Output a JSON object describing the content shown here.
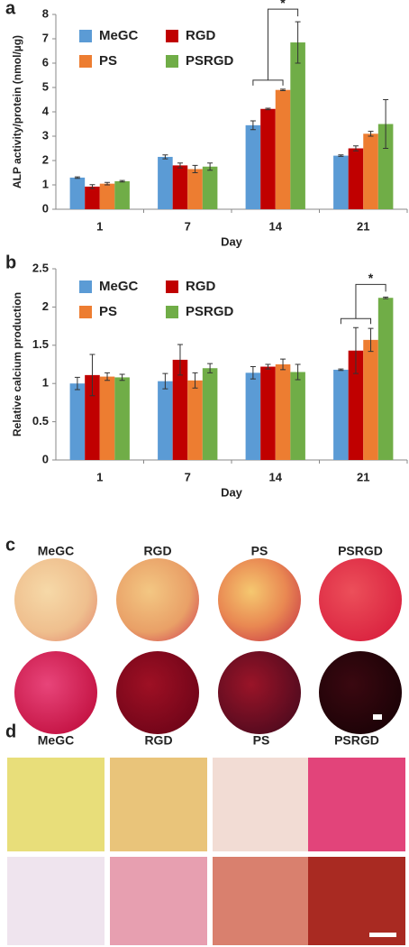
{
  "chart_data": [
    {
      "type": "bar",
      "panel": "a",
      "y_label": "ALP activity/protein (nmol/µg)",
      "x_label": "Day",
      "categories": [
        "1",
        "7",
        "14",
        "21"
      ],
      "series": [
        {
          "name": "MeGC",
          "color": "#5b9bd5",
          "values": [
            1.3,
            2.15,
            3.45,
            2.2
          ],
          "errors": [
            0.03,
            0.08,
            0.18,
            0.03
          ]
        },
        {
          "name": "RGD",
          "color": "#c00000",
          "values": [
            0.93,
            1.8,
            4.12,
            2.5
          ],
          "errors": [
            0.08,
            0.1,
            0.03,
            0.1
          ]
        },
        {
          "name": "PS",
          "color": "#ed7d31",
          "values": [
            1.05,
            1.65,
            4.9,
            3.1
          ],
          "errors": [
            0.05,
            0.15,
            0.03,
            0.1
          ]
        },
        {
          "name": "PSRGD",
          "color": "#70ad47",
          "values": [
            1.15,
            1.75,
            6.85,
            3.5
          ],
          "errors": [
            0.03,
            0.15,
            0.85,
            1.0
          ]
        }
      ],
      "ylim": [
        0,
        8
      ],
      "yticks": [
        0,
        1,
        2,
        3,
        4,
        5,
        6,
        7,
        8
      ],
      "annotation": "*"
    },
    {
      "type": "bar",
      "panel": "b",
      "y_label": "Relative calcium production",
      "x_label": "Day",
      "categories": [
        "1",
        "7",
        "14",
        "21"
      ],
      "series": [
        {
          "name": "MeGC",
          "color": "#5b9bd5",
          "values": [
            1.0,
            1.03,
            1.14,
            1.18
          ],
          "errors": [
            0.08,
            0.1,
            0.08,
            0.01
          ]
        },
        {
          "name": "RGD",
          "color": "#c00000",
          "values": [
            1.11,
            1.31,
            1.22,
            1.43
          ],
          "errors": [
            0.27,
            0.2,
            0.03,
            0.3
          ]
        },
        {
          "name": "PS",
          "color": "#ed7d31",
          "values": [
            1.09,
            1.04,
            1.25,
            1.57
          ],
          "errors": [
            0.05,
            0.1,
            0.07,
            0.15
          ]
        },
        {
          "name": "PSRGD",
          "color": "#70ad47",
          "values": [
            1.08,
            1.2,
            1.15,
            2.12
          ],
          "errors": [
            0.04,
            0.06,
            0.1,
            0.01
          ]
        }
      ],
      "ylim": [
        0,
        2.5
      ],
      "yticks": [
        0,
        0.5,
        1,
        1.5,
        2,
        2.5
      ],
      "annotation": "*"
    }
  ],
  "panels": [
    {
      "label": "c",
      "columns": [
        "MeGC",
        "RGD",
        "PS",
        "PSRGD"
      ]
    },
    {
      "label": "d",
      "columns": [
        "MeGC",
        "RGD",
        "PS",
        "PSRGD"
      ]
    }
  ]
}
